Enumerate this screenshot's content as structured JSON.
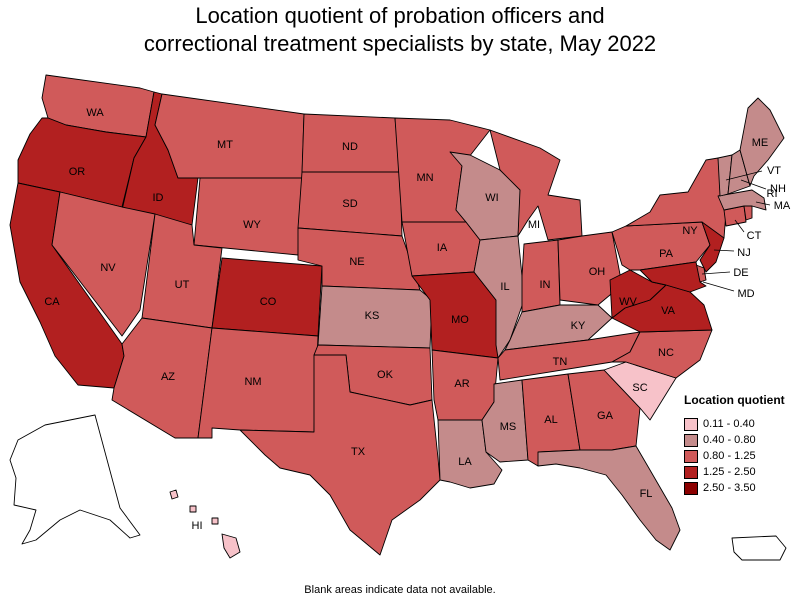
{
  "title_lines": [
    "Location quotient of probation officers and",
    "correctional treatment specialists by state, May 2022"
  ],
  "legend": {
    "title": "Location quotient",
    "bins": [
      {
        "label": "0.11 - 0.40",
        "color": "#f7c2c9"
      },
      {
        "label": "0.40 - 0.80",
        "color": "#c48b8b"
      },
      {
        "label": "0.80 - 1.25",
        "color": "#d05a5a"
      },
      {
        "label": "1.25 - 2.50",
        "color": "#b22020"
      },
      {
        "label": "2.50 - 3.50",
        "color": "#8b0000"
      }
    ]
  },
  "footnote": "Blank areas indicate data not available.",
  "chart_data": {
    "type": "choropleth",
    "measure": "Location quotient",
    "states": [
      {
        "abbr": "WA",
        "bin": 2
      },
      {
        "abbr": "OR",
        "bin": 3
      },
      {
        "abbr": "CA",
        "bin": 3
      },
      {
        "abbr": "ID",
        "bin": 3
      },
      {
        "abbr": "NV",
        "bin": 2
      },
      {
        "abbr": "MT",
        "bin": 2
      },
      {
        "abbr": "WY",
        "bin": 2
      },
      {
        "abbr": "UT",
        "bin": 2
      },
      {
        "abbr": "AZ",
        "bin": 2
      },
      {
        "abbr": "CO",
        "bin": 3
      },
      {
        "abbr": "NM",
        "bin": 2
      },
      {
        "abbr": "ND",
        "bin": 2
      },
      {
        "abbr": "SD",
        "bin": 2
      },
      {
        "abbr": "NE",
        "bin": 2
      },
      {
        "abbr": "KS",
        "bin": 1
      },
      {
        "abbr": "OK",
        "bin": 2
      },
      {
        "abbr": "TX",
        "bin": 2
      },
      {
        "abbr": "MN",
        "bin": 2
      },
      {
        "abbr": "IA",
        "bin": 2
      },
      {
        "abbr": "MO",
        "bin": 3
      },
      {
        "abbr": "AR",
        "bin": 2
      },
      {
        "abbr": "LA",
        "bin": 1
      },
      {
        "abbr": "WI",
        "bin": 1
      },
      {
        "abbr": "IL",
        "bin": 1
      },
      {
        "abbr": "MI",
        "bin": 2
      },
      {
        "abbr": "IN",
        "bin": 2
      },
      {
        "abbr": "OH",
        "bin": 2
      },
      {
        "abbr": "KY",
        "bin": 1
      },
      {
        "abbr": "TN",
        "bin": 2
      },
      {
        "abbr": "MS",
        "bin": 1
      },
      {
        "abbr": "AL",
        "bin": 2
      },
      {
        "abbr": "GA",
        "bin": 2
      },
      {
        "abbr": "FL",
        "bin": 1
      },
      {
        "abbr": "SC",
        "bin": 0
      },
      {
        "abbr": "NC",
        "bin": 2
      },
      {
        "abbr": "VA",
        "bin": 3
      },
      {
        "abbr": "WV",
        "bin": 3
      },
      {
        "abbr": "PA",
        "bin": 2
      },
      {
        "abbr": "NY",
        "bin": 2
      },
      {
        "abbr": "NJ",
        "bin": 3
      },
      {
        "abbr": "DE",
        "bin": 2
      },
      {
        "abbr": "MD",
        "bin": 3
      },
      {
        "abbr": "CT",
        "bin": 2
      },
      {
        "abbr": "RI",
        "bin": 2
      },
      {
        "abbr": "MA",
        "bin": 1
      },
      {
        "abbr": "VT",
        "bin": 1
      },
      {
        "abbr": "NH",
        "bin": 1
      },
      {
        "abbr": "ME",
        "bin": 1
      },
      {
        "abbr": "HI",
        "bin": 0
      },
      {
        "abbr": "AK",
        "bin": null
      },
      {
        "abbr": "PR",
        "bin": null
      }
    ]
  }
}
